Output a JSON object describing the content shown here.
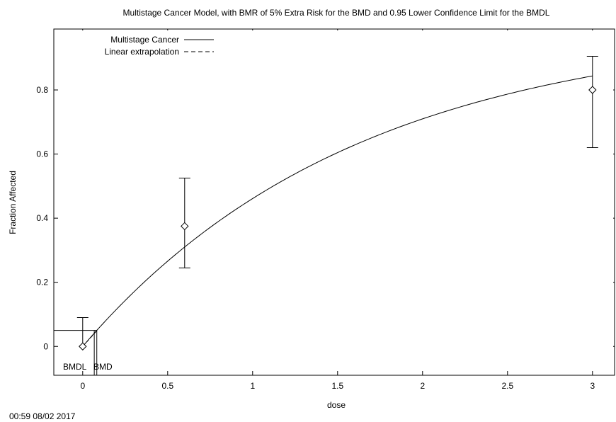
{
  "chart_data": {
    "type": "line",
    "title": "Multistage Cancer Model, with BMR of 5% Extra Risk for the BMD and 0.95 Lower Confidence Limit for the BMDL",
    "xlabel": "dose",
    "ylabel": "Fraction Affected",
    "xlim": [
      -0.17,
      3.13
    ],
    "ylim": [
      -0.09,
      0.99
    ],
    "x_ticks": [
      0,
      0.5,
      1,
      1.5,
      2,
      2.5,
      3
    ],
    "x_tick_labels": [
      "0",
      "0.5",
      "1",
      "1.5",
      "2",
      "2.5",
      "3"
    ],
    "y_ticks": [
      0,
      0.2,
      0.4,
      0.6,
      0.8
    ],
    "y_tick_labels": [
      "0",
      "0.2",
      "0.4",
      "0.6",
      "0.8"
    ],
    "grid": false,
    "legend_position": "top-left",
    "series": [
      {
        "name": "Multistage Cancer",
        "style": "solid",
        "model": {
          "form": "1-exp(-b1*d)",
          "b1": 0.6185,
          "x_range": [
            0,
            3
          ]
        }
      },
      {
        "name": "Linear extrapolation",
        "style": "dashed",
        "x": [
          0,
          0.085
        ],
        "y": [
          0,
          0.05
        ]
      }
    ],
    "observed": {
      "marker": "diamond",
      "x": [
        0,
        0.6,
        3
      ],
      "y": [
        0,
        0.375,
        0.8
      ],
      "lower": [
        0,
        0.245,
        0.62
      ],
      "upper": [
        0.09,
        0.525,
        0.905
      ]
    },
    "bmr": 0.05,
    "bmd": 0.083,
    "bmdl": 0.068,
    "annotations": {
      "bmdl_label": "BMDL",
      "bmd_label": "BMD"
    }
  },
  "footer": {
    "timestamp": "00:59 08/02 2017"
  },
  "colors": {
    "line": "#000000",
    "background": "#ffffff"
  }
}
